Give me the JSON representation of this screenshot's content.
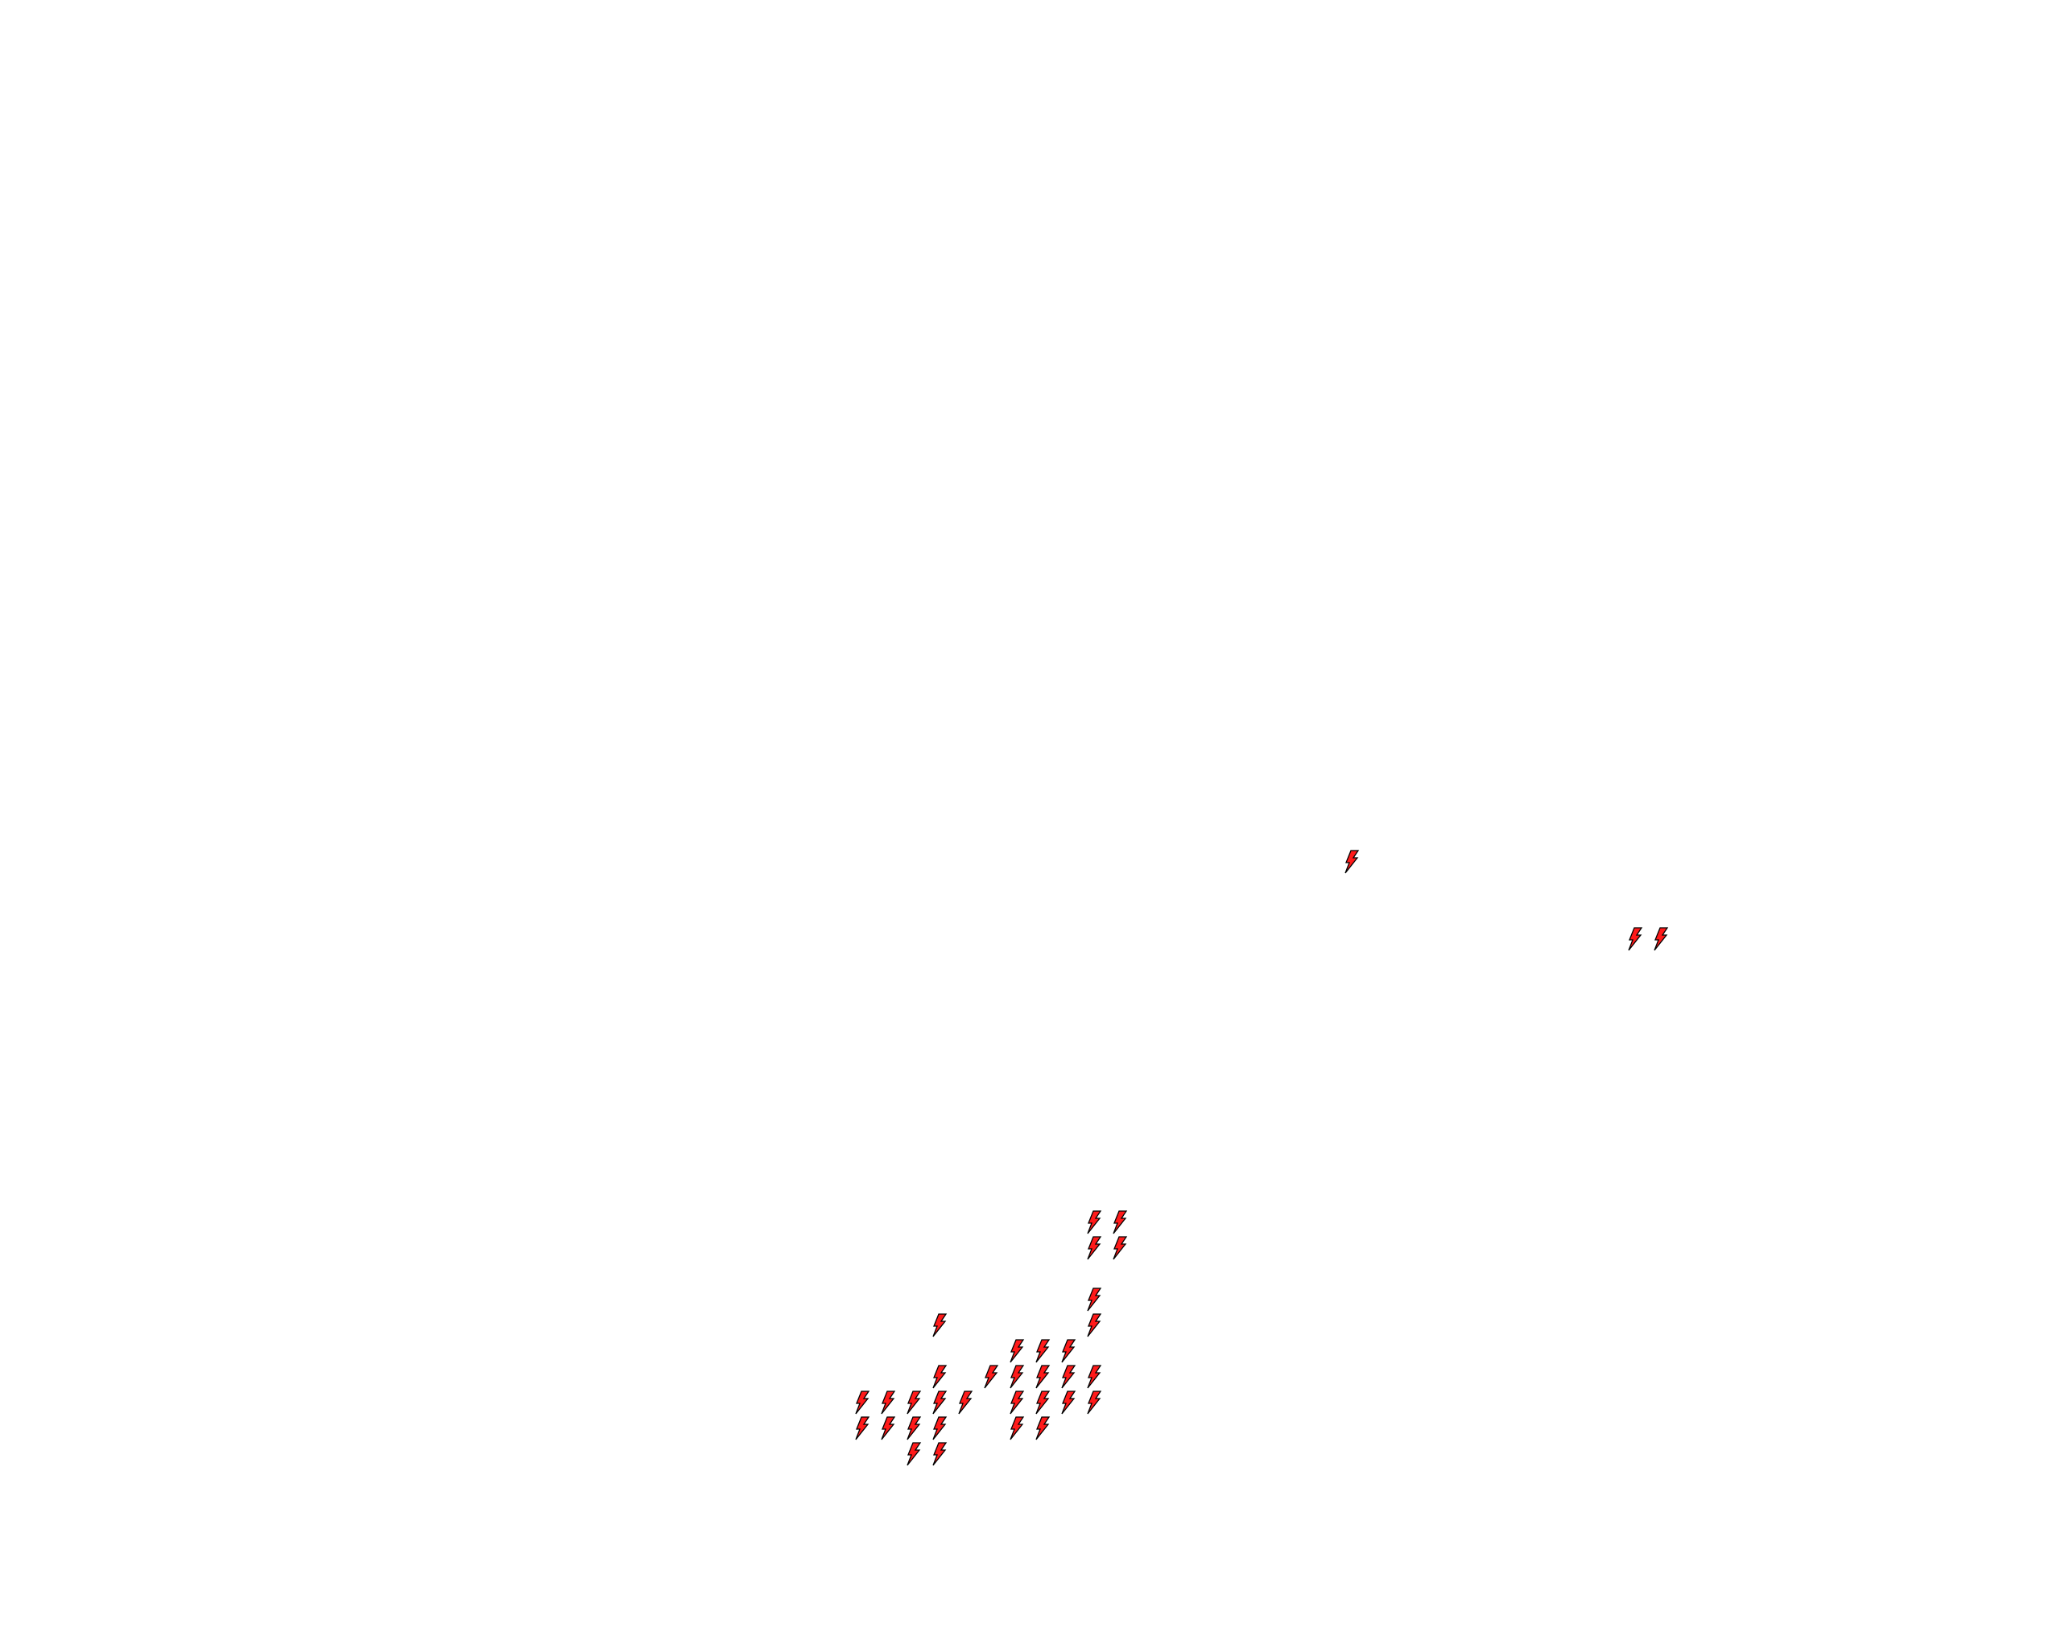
{
  "map": {
    "background_color": "#ffffff",
    "marker_icon": "lightning-bolt-icon",
    "marker_fill": "#ff1a1a",
    "marker_stroke": "#000000"
  }
}
